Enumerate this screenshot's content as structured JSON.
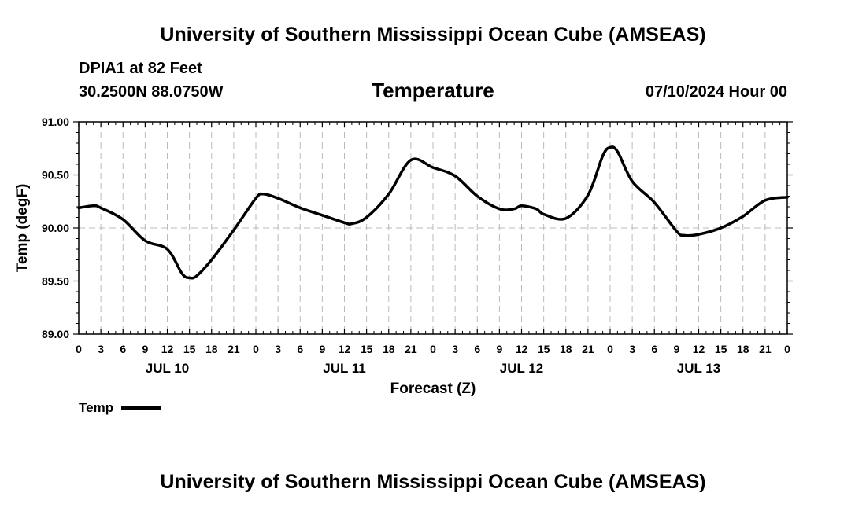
{
  "header": {
    "title": "University of Southern Mississippi Ocean Cube (AMSEAS)",
    "station": "DPIA1 at 82 Feet",
    "coords": "30.2500N  88.0750W",
    "run_time": "07/10/2024 Hour 00",
    "footer_title": "University of Southern Mississippi Ocean Cube (AMSEAS)"
  },
  "chart_data": {
    "type": "line",
    "title": "Temperature",
    "xlabel": "Forecast (Z)",
    "ylabel": "Temp (degF)",
    "xlim": [
      0,
      96
    ],
    "ylim": [
      89.0,
      91.0
    ],
    "x_tick_labels": [
      "0",
      "3",
      "6",
      "9",
      "12",
      "15",
      "18",
      "21",
      "0",
      "3",
      "6",
      "9",
      "12",
      "15",
      "18",
      "21",
      "0",
      "3",
      "6",
      "9",
      "12",
      "15",
      "18",
      "21",
      "0",
      "3",
      "6",
      "9",
      "12",
      "15",
      "18",
      "21",
      "0"
    ],
    "y_tick_labels": [
      "89.00",
      "89.50",
      "90.00",
      "90.50",
      "91.00"
    ],
    "y_ticks": [
      89.0,
      89.5,
      90.0,
      90.5,
      91.0
    ],
    "day_labels": [
      {
        "label": "JUL 10",
        "x": 12
      },
      {
        "label": "JUL 11",
        "x": 36
      },
      {
        "label": "JUL 12",
        "x": 60
      },
      {
        "label": "JUL 13",
        "x": 84
      }
    ],
    "grid": true,
    "legend": "bottom-left",
    "series": [
      {
        "name": "Temp",
        "color": "#000000",
        "x": [
          0,
          2,
          3,
          6,
          9,
          12,
          14,
          15,
          16,
          18,
          21,
          24,
          25,
          27,
          30,
          33,
          36,
          37,
          39,
          42,
          45,
          48,
          51,
          54,
          57,
          59,
          60,
          62,
          63,
          66,
          69,
          71,
          72,
          73,
          75,
          78,
          81,
          82,
          84,
          87,
          90,
          93,
          96
        ],
        "values": [
          90.19,
          90.21,
          90.19,
          90.08,
          89.88,
          89.8,
          89.57,
          89.53,
          89.55,
          89.7,
          89.98,
          90.28,
          90.32,
          90.28,
          90.19,
          90.12,
          90.05,
          90.04,
          90.1,
          90.32,
          90.64,
          90.57,
          90.49,
          90.3,
          90.18,
          90.18,
          90.21,
          90.18,
          90.13,
          90.09,
          90.31,
          90.68,
          90.76,
          90.72,
          90.44,
          90.24,
          89.97,
          89.93,
          89.94,
          90.0,
          90.11,
          90.26,
          90.29
        ]
      }
    ]
  }
}
